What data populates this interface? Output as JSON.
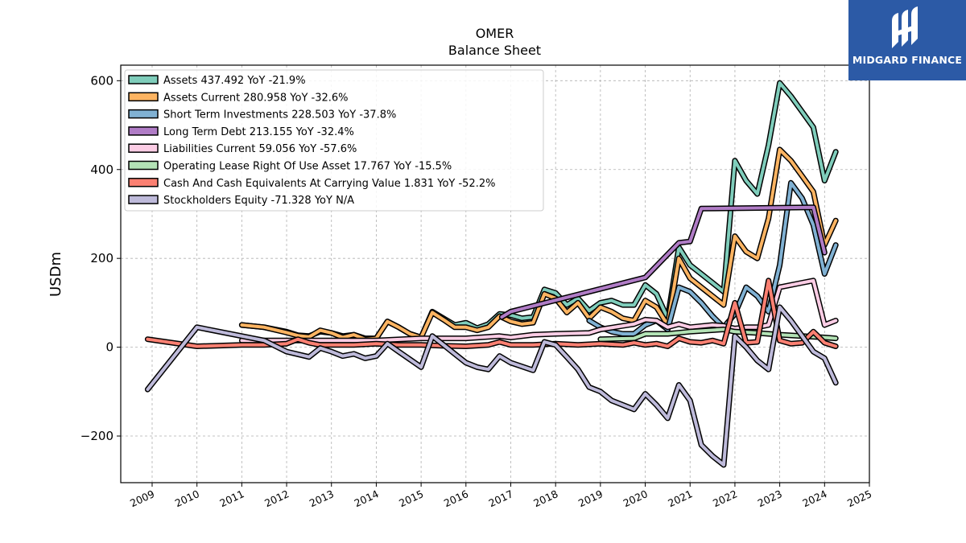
{
  "logo": {
    "text": "MIDGARD FINANCE"
  },
  "chart_data": {
    "type": "line",
    "title": "OMER",
    "subtitle": "Balance  Sheet",
    "ylabel": "USDm",
    "xlabel": "",
    "xlim": [
      2008.3,
      2025.0
    ],
    "ylim": [
      -305,
      635
    ],
    "yticks": [
      -200,
      0,
      200,
      400,
      600
    ],
    "ytick_labels": [
      "−200",
      "0",
      "200",
      "400",
      "600"
    ],
    "xticks": [
      2009,
      2010,
      2011,
      2012,
      2013,
      2014,
      2015,
      2016,
      2017,
      2018,
      2019,
      2020,
      2021,
      2022,
      2023,
      2024,
      2025
    ],
    "xtick_labels": [
      "2009",
      "2010",
      "2011",
      "2012",
      "2013",
      "2014",
      "2015",
      "2016",
      "2017",
      "2018",
      "2019",
      "2020",
      "2021",
      "2022",
      "2023",
      "2024",
      "2025"
    ],
    "grid": true,
    "legend_position": "top-left",
    "series": [
      {
        "name": "Assets",
        "legend": "Assets  437.492 YoY -21.9%",
        "color": "#7fcdbb",
        "points": [
          [
            2011.0,
            50
          ],
          [
            2011.5,
            45
          ],
          [
            2012.0,
            35
          ],
          [
            2012.25,
            27
          ],
          [
            2012.5,
            25
          ],
          [
            2012.75,
            35
          ],
          [
            2013.0,
            32
          ],
          [
            2013.25,
            25
          ],
          [
            2013.5,
            28
          ],
          [
            2013.75,
            20
          ],
          [
            2014.0,
            20
          ],
          [
            2014.25,
            58
          ],
          [
            2014.5,
            45
          ],
          [
            2014.75,
            30
          ],
          [
            2015.0,
            22
          ],
          [
            2015.25,
            80
          ],
          [
            2015.5,
            65
          ],
          [
            2015.75,
            50
          ],
          [
            2016.0,
            55
          ],
          [
            2016.25,
            43
          ],
          [
            2016.5,
            52
          ],
          [
            2016.75,
            75
          ],
          [
            2017.0,
            72
          ],
          [
            2017.25,
            65
          ],
          [
            2017.5,
            68
          ],
          [
            2017.75,
            130
          ],
          [
            2018.0,
            122
          ],
          [
            2018.25,
            95
          ],
          [
            2018.5,
            110
          ],
          [
            2018.75,
            82
          ],
          [
            2019.0,
            100
          ],
          [
            2019.25,
            105
          ],
          [
            2019.5,
            95
          ],
          [
            2019.75,
            95
          ],
          [
            2020.0,
            140
          ],
          [
            2020.25,
            120
          ],
          [
            2020.5,
            65
          ],
          [
            2020.75,
            225
          ],
          [
            2021.0,
            185
          ],
          [
            2021.25,
            165
          ],
          [
            2021.5,
            145
          ],
          [
            2021.75,
            125
          ],
          [
            2022.0,
            420
          ],
          [
            2022.25,
            375
          ],
          [
            2022.5,
            345
          ],
          [
            2022.75,
            455
          ],
          [
            2023.0,
            595
          ],
          [
            2023.25,
            565
          ],
          [
            2023.5,
            530
          ],
          [
            2023.75,
            495
          ],
          [
            2024.0,
            375
          ],
          [
            2024.25,
            440
          ]
        ]
      },
      {
        "name": "Assets Current",
        "legend": "Assets Current  280.958 YoY -32.6%",
        "color": "#fdb462",
        "points": [
          [
            2011.0,
            50
          ],
          [
            2011.5,
            45
          ],
          [
            2012.0,
            33
          ],
          [
            2012.25,
            26
          ],
          [
            2012.5,
            23
          ],
          [
            2012.75,
            38
          ],
          [
            2013.0,
            32
          ],
          [
            2013.25,
            22
          ],
          [
            2013.5,
            28
          ],
          [
            2013.75,
            18
          ],
          [
            2014.0,
            20
          ],
          [
            2014.25,
            58
          ],
          [
            2014.5,
            45
          ],
          [
            2014.75,
            30
          ],
          [
            2015.0,
            22
          ],
          [
            2015.25,
            78
          ],
          [
            2015.5,
            62
          ],
          [
            2015.75,
            45
          ],
          [
            2016.0,
            45
          ],
          [
            2016.25,
            38
          ],
          [
            2016.5,
            45
          ],
          [
            2016.75,
            70
          ],
          [
            2017.0,
            58
          ],
          [
            2017.25,
            52
          ],
          [
            2017.5,
            55
          ],
          [
            2017.75,
            120
          ],
          [
            2018.0,
            110
          ],
          [
            2018.25,
            78
          ],
          [
            2018.5,
            100
          ],
          [
            2018.75,
            65
          ],
          [
            2019.0,
            90
          ],
          [
            2019.25,
            80
          ],
          [
            2019.5,
            65
          ],
          [
            2019.75,
            60
          ],
          [
            2020.0,
            105
          ],
          [
            2020.25,
            90
          ],
          [
            2020.5,
            50
          ],
          [
            2020.75,
            200
          ],
          [
            2021.0,
            155
          ],
          [
            2021.25,
            135
          ],
          [
            2021.5,
            115
          ],
          [
            2021.75,
            95
          ],
          [
            2022.0,
            250
          ],
          [
            2022.25,
            215
          ],
          [
            2022.5,
            200
          ],
          [
            2022.75,
            290
          ],
          [
            2023.0,
            445
          ],
          [
            2023.25,
            420
          ],
          [
            2023.5,
            385
          ],
          [
            2023.75,
            350
          ],
          [
            2024.0,
            230
          ],
          [
            2024.25,
            285
          ]
        ]
      },
      {
        "name": "Short Term Investments",
        "legend": "Short Term Investments  228.503 YoY -37.8%",
        "color": "#80b1d3",
        "points": [
          [
            2018.75,
            60
          ],
          [
            2019.0,
            45
          ],
          [
            2019.25,
            35
          ],
          [
            2019.5,
            30
          ],
          [
            2019.75,
            30
          ],
          [
            2020.0,
            50
          ],
          [
            2020.25,
            60
          ],
          [
            2020.5,
            40
          ],
          [
            2020.75,
            135
          ],
          [
            2021.0,
            125
          ],
          [
            2021.25,
            100
          ],
          [
            2021.5,
            70
          ],
          [
            2021.75,
            45
          ],
          [
            2022.0,
            75
          ],
          [
            2022.25,
            135
          ],
          [
            2022.5,
            115
          ],
          [
            2022.75,
            80
          ],
          [
            2023.0,
            185
          ],
          [
            2023.25,
            370
          ],
          [
            2023.5,
            335
          ],
          [
            2023.75,
            275
          ],
          [
            2024.0,
            165
          ],
          [
            2024.25,
            230
          ]
        ]
      },
      {
        "name": "Long Term Debt",
        "legend": "Long Term Debt  213.155 YoY -32.4%",
        "color": "#b07cc6",
        "points": [
          [
            2016.8,
            68
          ],
          [
            2017.0,
            80
          ],
          [
            2020.0,
            157
          ],
          [
            2020.75,
            235
          ],
          [
            2021.0,
            238
          ],
          [
            2021.25,
            312
          ],
          [
            2023.75,
            315
          ],
          [
            2024.0,
            213
          ]
        ]
      },
      {
        "name": "Liabilities Current",
        "legend": "Liabilities Current  59.056 YoY -57.6%",
        "color": "#fccde5",
        "points": [
          [
            2011.0,
            15
          ],
          [
            2012.0,
            15
          ],
          [
            2013.0,
            15
          ],
          [
            2014.0,
            15
          ],
          [
            2015.0,
            20
          ],
          [
            2016.0,
            20
          ],
          [
            2016.75,
            25
          ],
          [
            2017.0,
            22
          ],
          [
            2017.5,
            28
          ],
          [
            2018.0,
            30
          ],
          [
            2018.75,
            32
          ],
          [
            2019.0,
            40
          ],
          [
            2019.5,
            48
          ],
          [
            2019.75,
            52
          ],
          [
            2020.0,
            62
          ],
          [
            2020.25,
            60
          ],
          [
            2020.5,
            45
          ],
          [
            2020.75,
            52
          ],
          [
            2021.0,
            45
          ],
          [
            2021.5,
            50
          ],
          [
            2021.75,
            48
          ],
          [
            2022.0,
            42
          ],
          [
            2022.25,
            45
          ],
          [
            2022.5,
            45
          ],
          [
            2022.75,
            50
          ],
          [
            2023.0,
            135
          ],
          [
            2023.5,
            145
          ],
          [
            2023.75,
            150
          ],
          [
            2024.0,
            50
          ],
          [
            2024.25,
            60
          ]
        ]
      },
      {
        "name": "Operating Lease Right Of Use Asset",
        "legend": "Operating Lease Right Of Use Asset  17.767 YoY -15.5%",
        "color": "#b3e2b5",
        "points": [
          [
            2019.0,
            18
          ],
          [
            2019.75,
            20
          ],
          [
            2020.0,
            30
          ],
          [
            2020.5,
            30
          ],
          [
            2021.0,
            35
          ],
          [
            2021.75,
            40
          ],
          [
            2022.0,
            35
          ],
          [
            2022.5,
            32
          ],
          [
            2023.0,
            28
          ],
          [
            2023.5,
            25
          ],
          [
            2024.0,
            22
          ],
          [
            2024.25,
            20
          ]
        ]
      },
      {
        "name": "Cash And Cash Equivalents At Carrying Value",
        "legend": "Cash And Cash Equivalents At Carrying Value  1.831 YoY -52.2%",
        "color": "#fb8072",
        "points": [
          [
            2008.9,
            18
          ],
          [
            2010.0,
            2
          ],
          [
            2011.0,
            5
          ],
          [
            2011.5,
            5
          ],
          [
            2012.0,
            8
          ],
          [
            2012.25,
            18
          ],
          [
            2012.5,
            10
          ],
          [
            2012.75,
            5
          ],
          [
            2013.0,
            5
          ],
          [
            2013.5,
            5
          ],
          [
            2014.0,
            8
          ],
          [
            2014.5,
            5
          ],
          [
            2015.0,
            5
          ],
          [
            2015.5,
            3
          ],
          [
            2016.0,
            2
          ],
          [
            2016.5,
            5
          ],
          [
            2016.75,
            12
          ],
          [
            2017.0,
            5
          ],
          [
            2017.5,
            5
          ],
          [
            2018.0,
            8
          ],
          [
            2018.5,
            5
          ],
          [
            2019.0,
            8
          ],
          [
            2019.5,
            5
          ],
          [
            2019.75,
            10
          ],
          [
            2020.0,
            5
          ],
          [
            2020.25,
            8
          ],
          [
            2020.5,
            2
          ],
          [
            2020.75,
            20
          ],
          [
            2021.0,
            12
          ],
          [
            2021.25,
            10
          ],
          [
            2021.5,
            15
          ],
          [
            2021.75,
            8
          ],
          [
            2022.0,
            100
          ],
          [
            2022.25,
            10
          ],
          [
            2022.5,
            12
          ],
          [
            2022.75,
            150
          ],
          [
            2023.0,
            15
          ],
          [
            2023.25,
            8
          ],
          [
            2023.5,
            10
          ],
          [
            2023.75,
            35
          ],
          [
            2024.0,
            10
          ],
          [
            2024.25,
            2
          ]
        ]
      },
      {
        "name": "Stockholders Equity",
        "legend": "Stockholders Equity  -71.328 YoY N/A",
        "color": "#bebada",
        "points": [
          [
            2008.9,
            -95
          ],
          [
            2010.0,
            45
          ],
          [
            2011.0,
            25
          ],
          [
            2011.5,
            15
          ],
          [
            2012.0,
            -10
          ],
          [
            2012.5,
            -22
          ],
          [
            2012.75,
            -2
          ],
          [
            2013.0,
            -10
          ],
          [
            2013.25,
            -20
          ],
          [
            2013.5,
            -15
          ],
          [
            2013.75,
            -25
          ],
          [
            2014.0,
            -20
          ],
          [
            2014.25,
            8
          ],
          [
            2014.5,
            -10
          ],
          [
            2015.0,
            -45
          ],
          [
            2015.25,
            25
          ],
          [
            2015.5,
            5
          ],
          [
            2015.75,
            -15
          ],
          [
            2016.0,
            -35
          ],
          [
            2016.25,
            -45
          ],
          [
            2016.5,
            -50
          ],
          [
            2016.75,
            -20
          ],
          [
            2017.0,
            -35
          ],
          [
            2017.5,
            -52
          ],
          [
            2017.75,
            12
          ],
          [
            2018.0,
            5
          ],
          [
            2018.25,
            -22
          ],
          [
            2018.5,
            -50
          ],
          [
            2018.75,
            -90
          ],
          [
            2019.0,
            -100
          ],
          [
            2019.25,
            -120
          ],
          [
            2019.5,
            -130
          ],
          [
            2019.75,
            -140
          ],
          [
            2020.0,
            -105
          ],
          [
            2020.25,
            -130
          ],
          [
            2020.5,
            -160
          ],
          [
            2020.75,
            -85
          ],
          [
            2021.0,
            -120
          ],
          [
            2021.25,
            -220
          ],
          [
            2021.5,
            -245
          ],
          [
            2021.75,
            -265
          ],
          [
            2022.0,
            25
          ],
          [
            2022.25,
            0
          ],
          [
            2022.5,
            -30
          ],
          [
            2022.75,
            -50
          ],
          [
            2023.0,
            90
          ],
          [
            2023.25,
            60
          ],
          [
            2023.5,
            25
          ],
          [
            2023.75,
            -10
          ],
          [
            2024.0,
            -25
          ],
          [
            2024.25,
            -80
          ]
        ]
      }
    ]
  }
}
